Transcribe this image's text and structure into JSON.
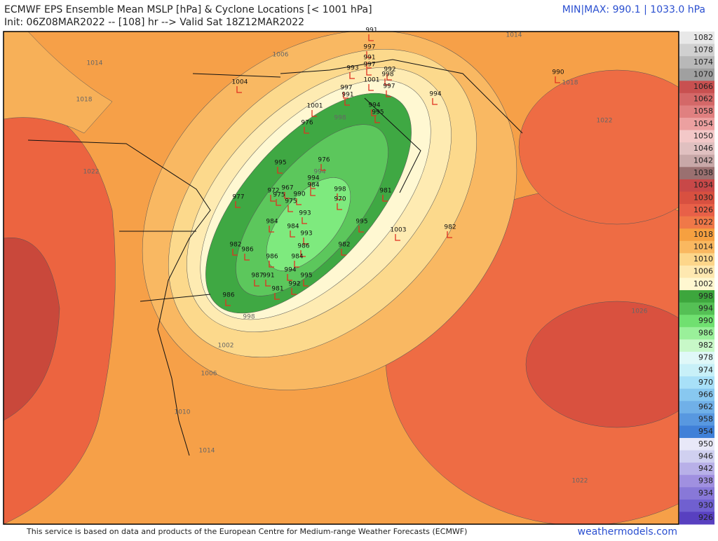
{
  "header": {
    "title": "ECMWF EPS Ensemble Mean MSLP [hPa] & Cyclone Locations [< 1001 hPa]",
    "init": "Init: 06Z08MAR2022 -- [108] hr --> Valid Sat 18Z12MAR2022",
    "minmax": "MIN|MAX: 990.1 | 1033.0 hPa"
  },
  "colorbar": {
    "labels": [
      1082,
      1078,
      1074,
      1070,
      1066,
      1062,
      1058,
      1054,
      1050,
      1046,
      1042,
      1038,
      1034,
      1030,
      1026,
      1022,
      1018,
      1014,
      1010,
      1006,
      1002,
      998,
      994,
      990,
      986,
      982,
      978,
      974,
      970,
      966,
      962,
      958,
      954,
      950,
      946,
      942,
      938,
      934,
      930,
      926
    ]
  },
  "contours": [
    1014,
    1018,
    1022,
    1006,
    998,
    994,
    998,
    1002,
    1006,
    1010,
    1014,
    1018,
    1022,
    1026,
    1022,
    1014
  ],
  "cyclones": [
    1004,
    990,
    991,
    997,
    991,
    997,
    993,
    992,
    998,
    1001,
    997,
    997,
    991,
    994,
    1001,
    994,
    995,
    976,
    995,
    976,
    994,
    998,
    981,
    970,
    977,
    967,
    972,
    975,
    984,
    990,
    975,
    993,
    995,
    1003,
    982,
    984,
    984,
    993,
    986,
    982,
    982,
    986,
    986,
    984,
    994,
    987,
    991,
    995,
    992,
    981,
    986
  ],
  "footer": {
    "credit": "This service is based on data and products of the European Centre for Medium-range Weather Forecasts (ECMWF)",
    "site": "weathermodels.com"
  }
}
